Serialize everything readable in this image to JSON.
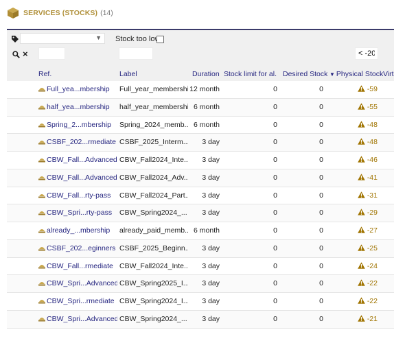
{
  "header": {
    "title": "SERVICES (STOCKS)",
    "count": "(14)"
  },
  "filters": {
    "stock_too_low_label": "Stock too low",
    "physical_filter_value": "< -20"
  },
  "columns": {
    "ref": "Ref.",
    "label": "Label",
    "duration": "Duration",
    "stock_limit": "Stock limit for al...",
    "desired_stock": "Desired Stock",
    "physical_stock": "Physical Stock",
    "virtual": "Virt"
  },
  "sort_indicator": "▼",
  "rows": [
    {
      "ref": "Full_yea...mbership",
      "label": "Full_year_membership",
      "duration": "12 month",
      "limit": "0",
      "desired": "0",
      "physical": "-59"
    },
    {
      "ref": "half_yea...mbership",
      "label": "half_year_membership",
      "duration": "6 month",
      "limit": "0",
      "desired": "0",
      "physical": "-55"
    },
    {
      "ref": "Spring_2...mbership",
      "label": "Spring_2024_memb...",
      "duration": "6 month",
      "limit": "0",
      "desired": "0",
      "physical": "-48"
    },
    {
      "ref": "CSBF_202...rmediate",
      "label": "CSBF_2025_Interm...",
      "duration": "3 day",
      "limit": "0",
      "desired": "0",
      "physical": "-48"
    },
    {
      "ref": "CBW_Fall...Advanced",
      "label": "CBW_Fall2024_Inte...",
      "duration": "3 day",
      "limit": "0",
      "desired": "0",
      "physical": "-46"
    },
    {
      "ref": "CBW_Fall...Advanced",
      "label": "CBW_Fall2024_Adv...",
      "duration": "3 day",
      "limit": "0",
      "desired": "0",
      "physical": "-41"
    },
    {
      "ref": "CBW_Fall...rty-pass",
      "label": "CBW_Fall2024_Part...",
      "duration": "3 day",
      "limit": "0",
      "desired": "0",
      "physical": "-31"
    },
    {
      "ref": "CBW_Spri...rty-pass",
      "label": "CBW_Spring2024_...",
      "duration": "3 day",
      "limit": "0",
      "desired": "0",
      "physical": "-29"
    },
    {
      "ref": "already_...mbership",
      "label": "already_paid_memb...",
      "duration": "6 month",
      "limit": "0",
      "desired": "0",
      "physical": "-27"
    },
    {
      "ref": "CSBF_202...eginners",
      "label": "CSBF_2025_Beginn...",
      "duration": "3 day",
      "limit": "0",
      "desired": "0",
      "physical": "-25"
    },
    {
      "ref": "CBW_Fall...rmediate",
      "label": "CBW_Fall2024_Inte...",
      "duration": "3 day",
      "limit": "0",
      "desired": "0",
      "physical": "-24"
    },
    {
      "ref": "CBW_Spri...Advanced",
      "label": "CBW_Spring2025_I...",
      "duration": "3 day",
      "limit": "0",
      "desired": "0",
      "physical": "-22"
    },
    {
      "ref": "CBW_Spri...rmediate",
      "label": "CBW_Spring2024_I...",
      "duration": "3 day",
      "limit": "0",
      "desired": "0",
      "physical": "-22"
    },
    {
      "ref": "CBW_Spri...Advanced",
      "label": "CBW_Spring2024_...",
      "duration": "3 day",
      "limit": "0",
      "desired": "0",
      "physical": "-21"
    }
  ],
  "icons": {
    "title": "box-icon",
    "filter_tag": "tag-icon",
    "search": "search-icon",
    "clear": "close-icon",
    "row_service": "service-icon",
    "stock_warning": "warning-icon"
  },
  "colors": {
    "accent": "#b0903a",
    "link": "#262680",
    "warning": "#a07400"
  }
}
